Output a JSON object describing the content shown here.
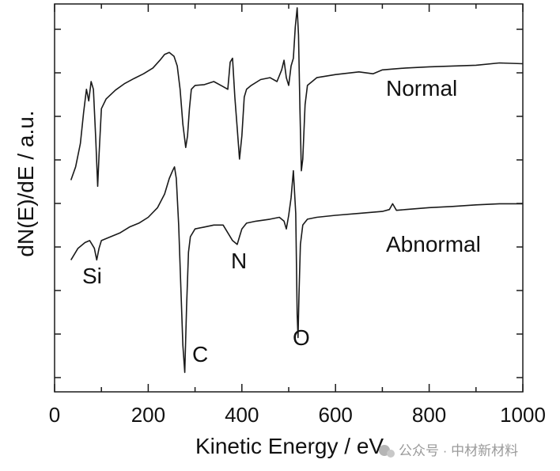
{
  "chart_data": {
    "type": "line",
    "title": "",
    "xlabel": "Kinetic Energy / eV",
    "ylabel": "dN(E)/dE / a.u.",
    "xlim": [
      0,
      1000
    ],
    "ylim": [
      0,
      1
    ],
    "x_ticks": [
      0,
      200,
      400,
      600,
      800,
      1000
    ],
    "x_tick_labels": [
      "0",
      "200",
      "400",
      "600",
      "800",
      "1000"
    ],
    "y_tick_labels_shown": false,
    "grid": false,
    "series": [
      {
        "name": "Normal",
        "x": [
          35,
          45,
          55,
          62,
          68,
          73,
          78,
          83,
          88,
          92,
          95,
          100,
          110,
          130,
          150,
          170,
          190,
          210,
          225,
          235,
          245,
          255,
          262,
          268,
          274,
          280,
          284,
          288,
          292,
          300,
          320,
          340,
          360,
          370,
          375,
          380,
          385,
          390,
          395,
          400,
          405,
          410,
          420,
          440,
          460,
          475,
          485,
          490,
          495,
          500,
          505,
          510,
          514,
          518,
          521,
          524,
          527,
          530,
          535,
          540,
          560,
          600,
          650,
          680,
          700,
          720,
          750,
          800,
          850,
          900,
          950,
          1000
        ],
        "y": [
          0.546,
          0.58,
          0.64,
          0.72,
          0.78,
          0.75,
          0.8,
          0.78,
          0.65,
          0.53,
          0.61,
          0.73,
          0.755,
          0.778,
          0.795,
          0.808,
          0.82,
          0.835,
          0.855,
          0.87,
          0.875,
          0.865,
          0.84,
          0.78,
          0.69,
          0.63,
          0.66,
          0.73,
          0.78,
          0.79,
          0.792,
          0.8,
          0.787,
          0.78,
          0.85,
          0.86,
          0.76,
          0.68,
          0.6,
          0.66,
          0.76,
          0.78,
          0.79,
          0.805,
          0.81,
          0.8,
          0.83,
          0.855,
          0.81,
          0.79,
          0.84,
          0.86,
          0.94,
          0.99,
          0.92,
          0.73,
          0.57,
          0.6,
          0.74,
          0.79,
          0.81,
          0.818,
          0.825,
          0.82,
          0.83,
          0.832,
          0.835,
          0.838,
          0.84,
          0.842,
          0.848,
          0.846
        ]
      },
      {
        "name": "Abnormal",
        "x": [
          35,
          50,
          65,
          75,
          80,
          85,
          90,
          95,
          100,
          120,
          140,
          160,
          180,
          200,
          220,
          235,
          245,
          252,
          256,
          260,
          265,
          270,
          274,
          278,
          282,
          286,
          290,
          300,
          320,
          340,
          360,
          380,
          390,
          395,
          400,
          410,
          430,
          460,
          480,
          490,
          495,
          500,
          505,
          510,
          515,
          518,
          520,
          522,
          525,
          530,
          540,
          560,
          600,
          650,
          700,
          715,
          722,
          730,
          750,
          800,
          850,
          900,
          950,
          1000
        ],
        "y": [
          0.34,
          0.37,
          0.385,
          0.39,
          0.38,
          0.37,
          0.34,
          0.37,
          0.39,
          0.4,
          0.41,
          0.425,
          0.435,
          0.45,
          0.475,
          0.51,
          0.55,
          0.57,
          0.58,
          0.55,
          0.43,
          0.26,
          0.12,
          0.05,
          0.22,
          0.36,
          0.4,
          0.42,
          0.425,
          0.43,
          0.43,
          0.39,
          0.38,
          0.4,
          0.42,
          0.435,
          0.44,
          0.445,
          0.45,
          0.44,
          0.42,
          0.455,
          0.5,
          0.57,
          0.46,
          0.2,
          0.14,
          0.25,
          0.38,
          0.43,
          0.445,
          0.45,
          0.455,
          0.46,
          0.465,
          0.47,
          0.485,
          0.468,
          0.47,
          0.475,
          0.478,
          0.482,
          0.485,
          0.485
        ]
      }
    ],
    "series_labels": [
      "Normal",
      "Abnormal"
    ],
    "annotations": [
      {
        "text": "Si",
        "x": 85
      },
      {
        "text": "C",
        "x": 280
      },
      {
        "text": "N",
        "x": 395
      },
      {
        "text": "O",
        "x": 520
      }
    ],
    "legend": "inline-right"
  },
  "watermark": {
    "text": "公众号 · 中材新材料"
  },
  "colors": {
    "line": "#1a1a1a",
    "axis": "#1a1a1a",
    "watermark": "#9a9a9a"
  }
}
